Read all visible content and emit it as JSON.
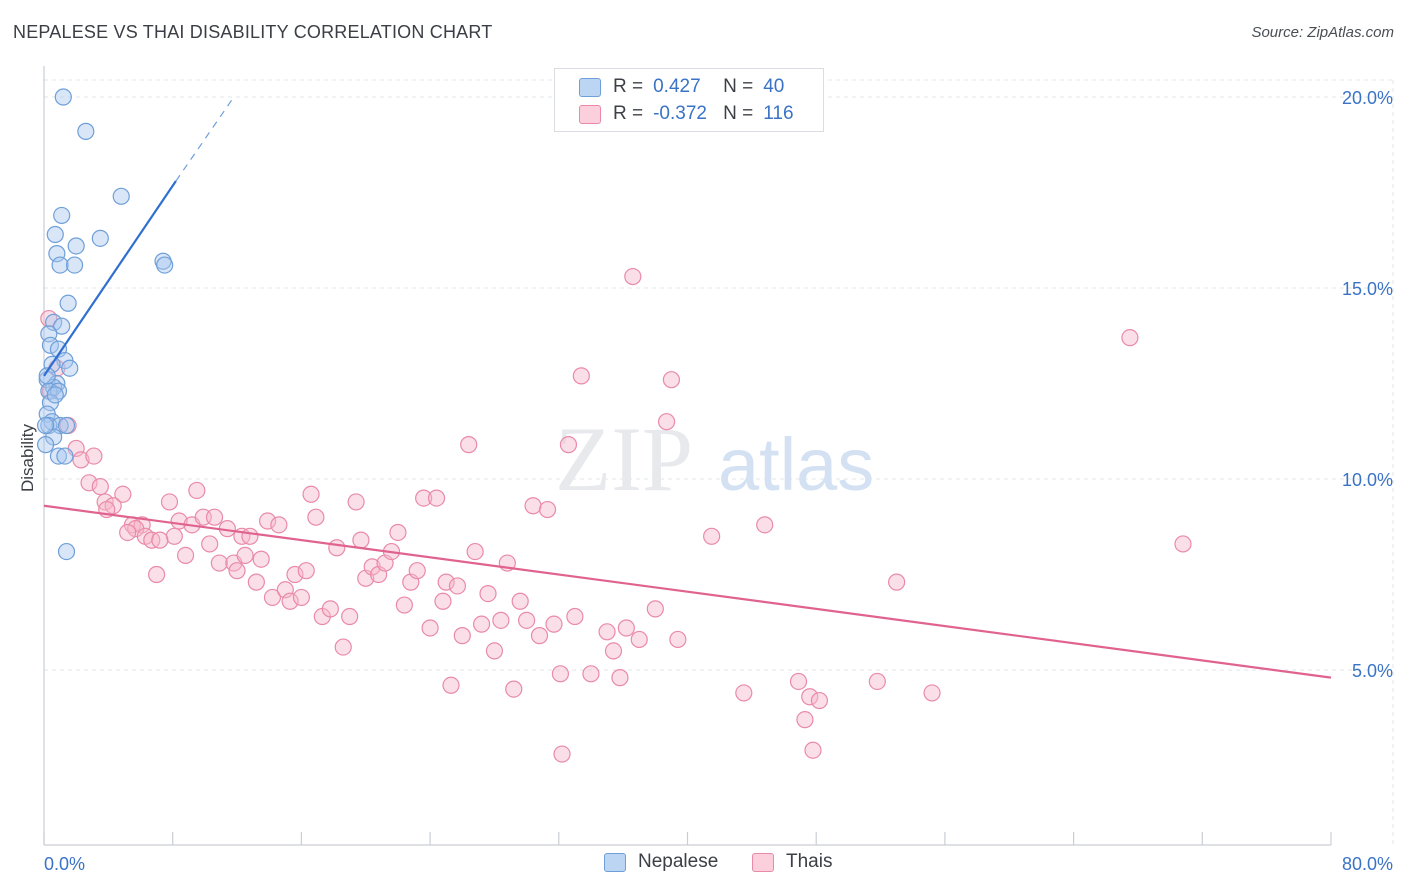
{
  "title": "NEPALESE VS THAI DISABILITY CORRELATION CHART",
  "source": "Source: ZipAtlas.com",
  "watermark": {
    "zip": "ZIP",
    "atlas": "atlas"
  },
  "legend": {
    "row1": {
      "r_label": "R =",
      "r_value": "0.427",
      "n_label": "N =",
      "n_value": "40"
    },
    "row2": {
      "r_label": "R =",
      "r_value": "-0.372",
      "n_label": "N =",
      "n_value": "116"
    }
  },
  "bottom_legend": {
    "nepalese": "Nepalese",
    "thais": "Thais"
  },
  "colors": {
    "blue_fill": "#a9c8ef",
    "blue_stroke": "#6f9fd8",
    "blue_line": "#2f6fd1",
    "pink_fill": "#f7b9cc",
    "pink_stroke": "#e98aa8",
    "pink_line": "#e0628f",
    "tick_text": "#3a73c6",
    "grid": "#e3e6ea"
  },
  "chart_data": {
    "type": "scatter",
    "title": "NEPALESE VS THAI DISABILITY CORRELATION CHART",
    "ylabel": "Disability",
    "xlabel": "",
    "xlim": [
      0,
      80
    ],
    "ylim": [
      0,
      21
    ],
    "x_tick_labels": [
      {
        "value": 0,
        "label": "0.0%"
      },
      {
        "value": 80,
        "label": "80.0%"
      }
    ],
    "y_tick_labels": [
      {
        "value": 5,
        "label": "5.0%"
      },
      {
        "value": 10,
        "label": "10.0%"
      },
      {
        "value": 15,
        "label": "15.0%"
      },
      {
        "value": 20,
        "label": "20.0%"
      }
    ],
    "series": [
      {
        "name": "Nepalese",
        "r": 0.427,
        "n": 40,
        "trend": {
          "x0": 0,
          "y0": 12.7,
          "x1": 8.2,
          "y1": 17.8,
          "dash_to_x": 11.8,
          "dash_to_y": 20.0
        },
        "points": [
          [
            1.2,
            20.0
          ],
          [
            2.6,
            19.1
          ],
          [
            4.8,
            17.4
          ],
          [
            1.1,
            16.9
          ],
          [
            0.7,
            16.4
          ],
          [
            3.5,
            16.3
          ],
          [
            2.0,
            16.1
          ],
          [
            0.8,
            15.9
          ],
          [
            1.0,
            15.6
          ],
          [
            1.9,
            15.6
          ],
          [
            7.4,
            15.7
          ],
          [
            7.5,
            15.6
          ],
          [
            1.5,
            14.6
          ],
          [
            0.6,
            14.1
          ],
          [
            1.1,
            14.0
          ],
          [
            0.3,
            13.8
          ],
          [
            0.4,
            13.5
          ],
          [
            0.9,
            13.4
          ],
          [
            1.3,
            13.1
          ],
          [
            0.5,
            13.0
          ],
          [
            1.6,
            12.9
          ],
          [
            0.2,
            12.6
          ],
          [
            0.8,
            12.5
          ],
          [
            0.6,
            12.4
          ],
          [
            0.3,
            12.3
          ],
          [
            0.9,
            12.3
          ],
          [
            0.4,
            12.0
          ],
          [
            0.2,
            11.7
          ],
          [
            0.5,
            11.5
          ],
          [
            0.3,
            11.4
          ],
          [
            1.0,
            11.4
          ],
          [
            1.4,
            11.4
          ],
          [
            0.6,
            11.1
          ],
          [
            0.1,
            10.9
          ],
          [
            0.9,
            10.6
          ],
          [
            1.3,
            10.6
          ],
          [
            1.4,
            8.1
          ],
          [
            0.2,
            12.7
          ],
          [
            0.7,
            12.2
          ],
          [
            0.1,
            11.4
          ]
        ]
      },
      {
        "name": "Thais",
        "r": -0.372,
        "n": 116,
        "trend": {
          "x0": 0,
          "y0": 9.3,
          "x1": 80,
          "y1": 4.8
        },
        "points": [
          [
            0.3,
            14.2
          ],
          [
            0.8,
            12.9
          ],
          [
            0.4,
            12.3
          ],
          [
            1.5,
            11.4
          ],
          [
            2.0,
            10.8
          ],
          [
            2.3,
            10.5
          ],
          [
            3.1,
            10.6
          ],
          [
            2.8,
            9.9
          ],
          [
            3.5,
            9.8
          ],
          [
            4.9,
            9.6
          ],
          [
            3.8,
            9.4
          ],
          [
            4.3,
            9.3
          ],
          [
            5.5,
            8.8
          ],
          [
            6.1,
            8.8
          ],
          [
            5.7,
            8.7
          ],
          [
            6.3,
            8.5
          ],
          [
            6.7,
            8.4
          ],
          [
            7.0,
            7.5
          ],
          [
            7.8,
            9.4
          ],
          [
            8.4,
            8.9
          ],
          [
            8.1,
            8.5
          ],
          [
            8.8,
            8.0
          ],
          [
            9.2,
            8.8
          ],
          [
            9.5,
            9.7
          ],
          [
            9.9,
            9.0
          ],
          [
            10.3,
            8.3
          ],
          [
            10.6,
            9.0
          ],
          [
            10.9,
            7.8
          ],
          [
            11.4,
            8.7
          ],
          [
            11.8,
            7.8
          ],
          [
            12.0,
            7.6
          ],
          [
            12.3,
            8.5
          ],
          [
            12.5,
            8.0
          ],
          [
            12.8,
            8.5
          ],
          [
            13.2,
            7.3
          ],
          [
            13.5,
            7.9
          ],
          [
            13.9,
            8.9
          ],
          [
            14.2,
            6.9
          ],
          [
            14.6,
            8.8
          ],
          [
            15.0,
            7.1
          ],
          [
            15.3,
            6.8
          ],
          [
            15.6,
            7.5
          ],
          [
            16.0,
            6.9
          ],
          [
            16.3,
            7.6
          ],
          [
            16.6,
            9.6
          ],
          [
            16.9,
            9.0
          ],
          [
            17.3,
            6.4
          ],
          [
            17.8,
            6.6
          ],
          [
            18.2,
            8.2
          ],
          [
            18.6,
            5.6
          ],
          [
            19.0,
            6.4
          ],
          [
            19.4,
            9.4
          ],
          [
            19.7,
            8.4
          ],
          [
            20.0,
            7.4
          ],
          [
            20.4,
            7.7
          ],
          [
            20.8,
            7.5
          ],
          [
            21.2,
            7.8
          ],
          [
            21.6,
            8.1
          ],
          [
            22.0,
            8.6
          ],
          [
            22.4,
            6.7
          ],
          [
            22.8,
            7.3
          ],
          [
            23.2,
            7.6
          ],
          [
            23.6,
            9.5
          ],
          [
            24.0,
            6.1
          ],
          [
            24.4,
            9.5
          ],
          [
            24.8,
            6.8
          ],
          [
            25.0,
            7.3
          ],
          [
            25.3,
            4.6
          ],
          [
            25.7,
            7.2
          ],
          [
            26.0,
            5.9
          ],
          [
            26.4,
            10.9
          ],
          [
            26.8,
            8.1
          ],
          [
            27.2,
            6.2
          ],
          [
            27.6,
            7.0
          ],
          [
            28.0,
            5.5
          ],
          [
            28.4,
            6.3
          ],
          [
            28.8,
            7.8
          ],
          [
            29.2,
            4.5
          ],
          [
            29.6,
            6.8
          ],
          [
            30.0,
            6.3
          ],
          [
            30.4,
            9.3
          ],
          [
            30.8,
            5.9
          ],
          [
            31.3,
            9.2
          ],
          [
            31.7,
            6.2
          ],
          [
            32.1,
            4.9
          ],
          [
            32.6,
            10.9
          ],
          [
            33.0,
            6.4
          ],
          [
            33.4,
            12.7
          ],
          [
            34.0,
            4.9
          ],
          [
            35.0,
            6.0
          ],
          [
            35.4,
            5.5
          ],
          [
            35.8,
            4.8
          ],
          [
            36.2,
            6.1
          ],
          [
            36.6,
            15.3
          ],
          [
            37.0,
            5.8
          ],
          [
            38.0,
            6.6
          ],
          [
            38.7,
            11.5
          ],
          [
            39.0,
            12.6
          ],
          [
            39.4,
            5.8
          ],
          [
            41.5,
            8.5
          ],
          [
            43.5,
            4.4
          ],
          [
            44.8,
            8.8
          ],
          [
            46.9,
            4.7
          ],
          [
            47.3,
            3.7
          ],
          [
            47.6,
            4.3
          ],
          [
            47.8,
            2.9
          ],
          [
            48.2,
            4.2
          ],
          [
            51.8,
            4.7
          ],
          [
            53.0,
            7.3
          ],
          [
            55.2,
            4.4
          ],
          [
            67.5,
            13.7
          ],
          [
            70.8,
            8.3
          ],
          [
            32.2,
            2.8
          ],
          [
            3.9,
            9.2
          ],
          [
            5.2,
            8.6
          ],
          [
            7.2,
            8.4
          ]
        ]
      }
    ]
  }
}
